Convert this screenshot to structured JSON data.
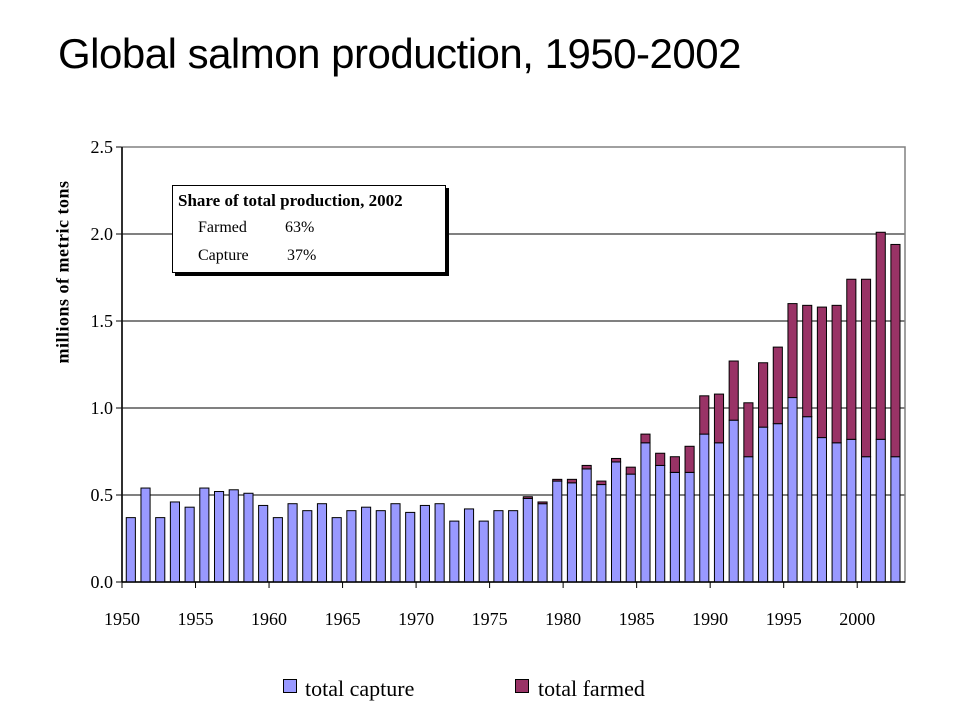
{
  "title": "Global salmon production, 1950-2002",
  "info_box": {
    "title": "Share of total production, 2002",
    "rows": [
      {
        "label": "Farmed",
        "value": "63%"
      },
      {
        "label": "Capture",
        "value": "37%"
      }
    ]
  },
  "colors": {
    "capture": "#9999ff",
    "farmed": "#993366",
    "grid": "#000000",
    "border": "#808080"
  },
  "chart_data": {
    "type": "bar",
    "stacked": true,
    "title": "Global salmon production, 1950-2002",
    "xlabel": "",
    "ylabel": "millions of metric tons",
    "ylim": [
      0,
      2.5
    ],
    "y_ticks": [
      "0.0",
      "0.5",
      "1.0",
      "1.5",
      "2.0",
      "2.5"
    ],
    "x_ticks": [
      "1950",
      "1955",
      "1960",
      "1965",
      "1970",
      "1975",
      "1980",
      "1985",
      "1990",
      "1995",
      "2000"
    ],
    "legend_position": "bottom",
    "x": [
      1950,
      1951,
      1952,
      1953,
      1954,
      1955,
      1956,
      1957,
      1958,
      1959,
      1960,
      1961,
      1962,
      1963,
      1964,
      1965,
      1966,
      1967,
      1968,
      1969,
      1970,
      1971,
      1972,
      1973,
      1974,
      1975,
      1976,
      1977,
      1978,
      1979,
      1980,
      1981,
      1982,
      1983,
      1984,
      1985,
      1986,
      1987,
      1988,
      1989,
      1990,
      1991,
      1992,
      1993,
      1994,
      1995,
      1996,
      1997,
      1998,
      1999,
      2000,
      2001,
      2002
    ],
    "series": [
      {
        "name": "total capture",
        "values": [
          0.37,
          0.54,
          0.37,
          0.46,
          0.43,
          0.54,
          0.52,
          0.53,
          0.51,
          0.44,
          0.37,
          0.45,
          0.41,
          0.45,
          0.37,
          0.41,
          0.43,
          0.41,
          0.45,
          0.4,
          0.44,
          0.45,
          0.35,
          0.42,
          0.35,
          0.41,
          0.41,
          0.48,
          0.45,
          0.58,
          0.57,
          0.65,
          0.56,
          0.69,
          0.62,
          0.8,
          0.67,
          0.63,
          0.63,
          0.85,
          0.8,
          0.93,
          0.72,
          0.89,
          0.91,
          1.06,
          0.95,
          0.83,
          0.8,
          0.82,
          0.72,
          0.82,
          0.72
        ]
      },
      {
        "name": "total farmed",
        "values": [
          0,
          0,
          0,
          0,
          0,
          0,
          0,
          0,
          0,
          0,
          0,
          0,
          0,
          0,
          0,
          0,
          0,
          0,
          0,
          0,
          0,
          0,
          0,
          0,
          0,
          0,
          0,
          0.01,
          0.01,
          0.01,
          0.02,
          0.02,
          0.02,
          0.02,
          0.04,
          0.05,
          0.07,
          0.09,
          0.15,
          0.22,
          0.28,
          0.34,
          0.31,
          0.37,
          0.44,
          0.54,
          0.64,
          0.75,
          0.79,
          0.92,
          1.02,
          1.19,
          1.22
        ]
      }
    ]
  }
}
